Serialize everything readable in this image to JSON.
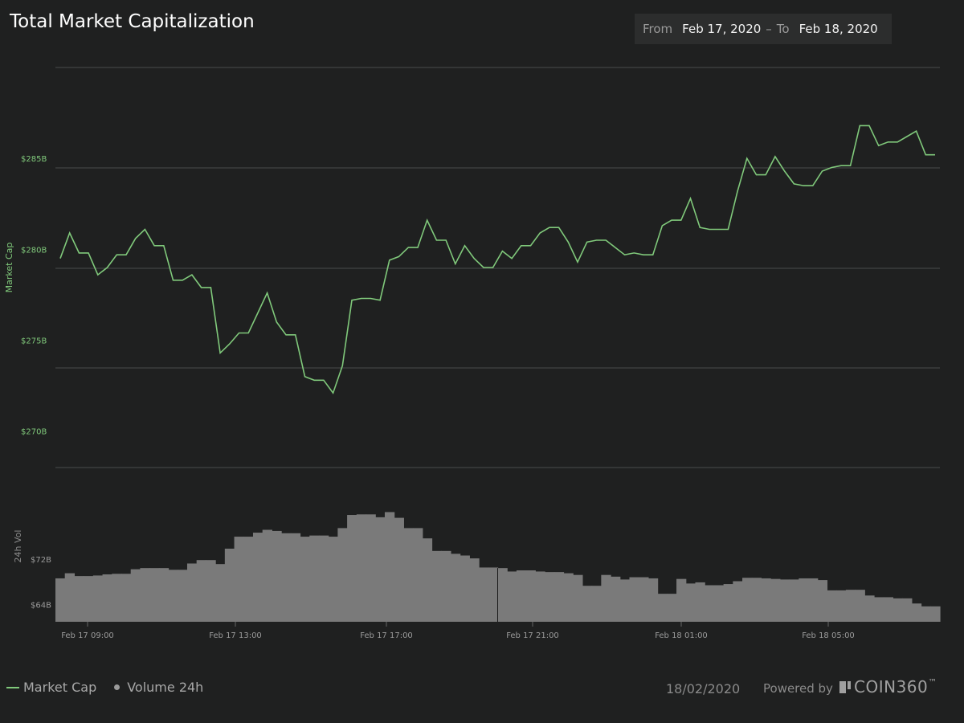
{
  "header": {
    "title": "Total Market Capitalization",
    "from_label": "From",
    "from_value": "Feb 17, 2020",
    "separator": "–",
    "to_label": "To",
    "to_value": "Feb 18, 2020"
  },
  "legend": {
    "market_cap": "Market Cap",
    "volume": "Volume 24h"
  },
  "footer": {
    "date": "18/02/2020",
    "powered_by": "Powered by",
    "brand": "COIN360",
    "trademark": "™"
  },
  "colors": {
    "background": "#1f2020",
    "line": "#80c97b",
    "bars": "#7a7a7a",
    "grid": "#4a4b4b"
  },
  "chart_data": {
    "type": "line+bar",
    "title": "Total Market Capitalization",
    "x_ticks": [
      "Feb 17 09:00",
      "Feb 17 13:00",
      "Feb 17 17:00",
      "Feb 17 21:00",
      "Feb 18 01:00",
      "Feb 18 05:00"
    ],
    "x_start": "Feb 17 08:05",
    "x_end": "Feb 18 08:00",
    "market_cap": {
      "name": "Market Cap",
      "ylabel": "Market Cap",
      "unit": "B",
      "y_ticks": [
        "$270B",
        "$275B",
        "$280B",
        "$285B"
      ],
      "ylim": [
        268,
        290
      ],
      "values": [
        279.5,
        280.9,
        279.8,
        279.8,
        278.6,
        279.0,
        279.7,
        279.7,
        280.6,
        281.1,
        280.2,
        280.2,
        278.3,
        278.3,
        278.6,
        277.9,
        277.9,
        274.3,
        274.8,
        275.4,
        275.4,
        276.5,
        277.6,
        276.0,
        275.3,
        275.3,
        273.0,
        272.8,
        272.8,
        272.1,
        273.6,
        277.2,
        277.3,
        277.3,
        277.2,
        279.4,
        279.6,
        280.1,
        280.1,
        281.6,
        280.5,
        280.5,
        279.2,
        280.2,
        279.5,
        279.0,
        279.0,
        279.9,
        279.5,
        280.2,
        280.2,
        280.9,
        281.2,
        281.2,
        280.4,
        279.3,
        280.4,
        280.5,
        280.5,
        280.1,
        279.7,
        279.8,
        279.7,
        279.7,
        281.3,
        281.6,
        281.6,
        282.8,
        281.2,
        281.1,
        281.1,
        281.1,
        283.2,
        285.0,
        284.1,
        284.1,
        285.1,
        284.3,
        283.6,
        283.5,
        283.5,
        284.3,
        284.5,
        284.6,
        284.6,
        286.8,
        286.8,
        285.7,
        285.9,
        285.9,
        286.2,
        286.5,
        285.2,
        285.2
      ]
    },
    "volume": {
      "name": "Volume 24h",
      "ylabel": "24h Vol",
      "unit": "B",
      "y_ticks": [
        "$64B",
        "$72B"
      ],
      "ylim": [
        61,
        88
      ],
      "values": [
        68.6,
        69.5,
        69.0,
        69.0,
        69.1,
        69.3,
        69.4,
        69.4,
        70.2,
        70.4,
        70.4,
        70.4,
        70.1,
        70.1,
        71.2,
        71.8,
        71.8,
        71.1,
        73.8,
        75.9,
        75.9,
        76.6,
        77.1,
        76.9,
        76.5,
        76.5,
        75.9,
        76.1,
        76.1,
        75.9,
        77.4,
        79.7,
        79.8,
        79.8,
        79.3,
        80.2,
        79.2,
        77.4,
        77.4,
        75.6,
        73.4,
        73.4,
        72.9,
        72.6,
        72.1,
        70.5,
        70.5,
        70.4,
        69.8,
        70.0,
        70.0,
        69.8,
        69.7,
        69.7,
        69.5,
        69.2,
        67.3,
        67.3,
        69.2,
        68.9,
        68.4,
        68.8,
        68.8,
        68.6,
        65.9,
        65.9,
        68.5,
        67.7,
        67.9,
        67.4,
        67.4,
        67.6,
        68.1,
        68.7,
        68.7,
        68.6,
        68.5,
        68.4,
        68.4,
        68.6,
        68.6,
        68.3,
        66.5,
        66.5,
        66.6,
        66.6,
        65.6,
        65.3,
        65.3,
        65.1,
        65.1,
        64.2,
        63.7,
        63.7
      ]
    }
  }
}
